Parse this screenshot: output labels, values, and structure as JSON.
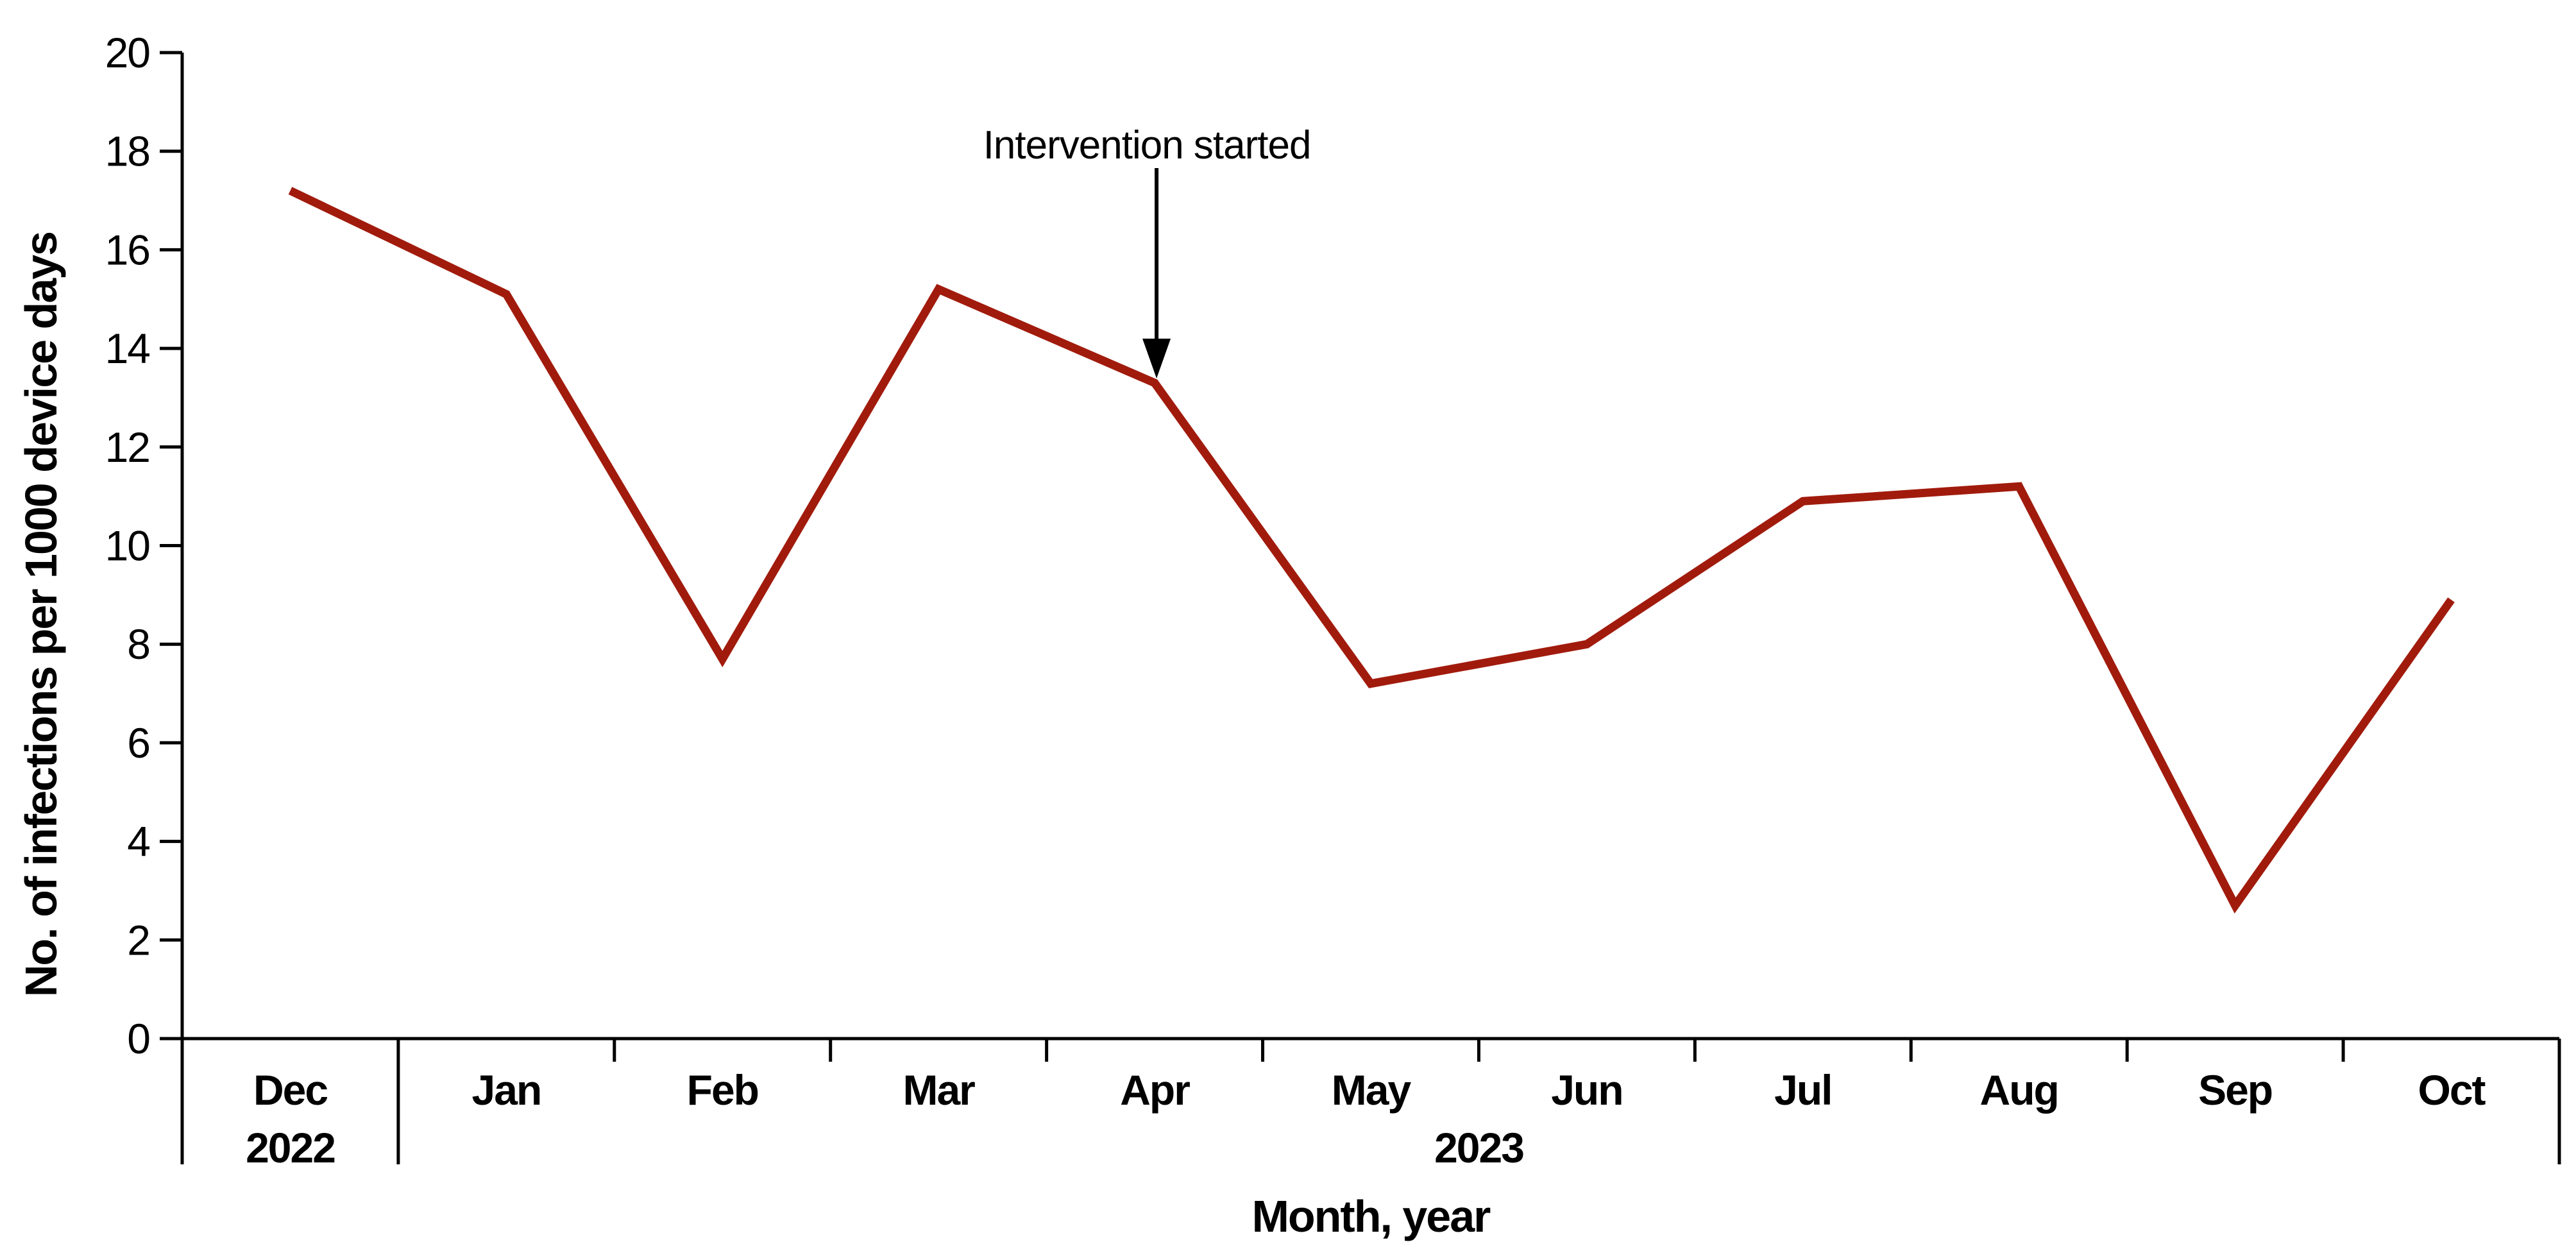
{
  "chart_data": {
    "type": "line",
    "title": null,
    "xlabel": "Month, year",
    "ylabel": "No. of infections per 1000 device days",
    "categories": [
      "Dec",
      "Jan",
      "Feb",
      "Mar",
      "Apr",
      "May",
      "Jun",
      "Jul",
      "Aug",
      "Sep",
      "Oct"
    ],
    "values": [
      17.2,
      15.1,
      7.7,
      15.2,
      13.3,
      7.2,
      8.0,
      10.9,
      11.2,
      2.7,
      8.9
    ],
    "years": [
      {
        "label": "2022",
        "covers": [
          "Dec"
        ]
      },
      {
        "label": "2023",
        "covers": [
          "Jan",
          "Feb",
          "Mar",
          "Apr",
          "May",
          "Jun",
          "Jul",
          "Aug",
          "Sep",
          "Oct"
        ]
      }
    ],
    "ylim": [
      0,
      20
    ],
    "yticks": [
      0,
      2,
      4,
      6,
      8,
      10,
      12,
      14,
      16,
      18,
      20
    ],
    "grid": false,
    "legend": null,
    "annotation": {
      "text": "Intervention started",
      "target_category": "Apr",
      "target_value": 13.3
    },
    "colors": {
      "line": "#A11B0D",
      "axis": "#000000",
      "text": "#000000",
      "background": "#FFFFFF"
    }
  }
}
